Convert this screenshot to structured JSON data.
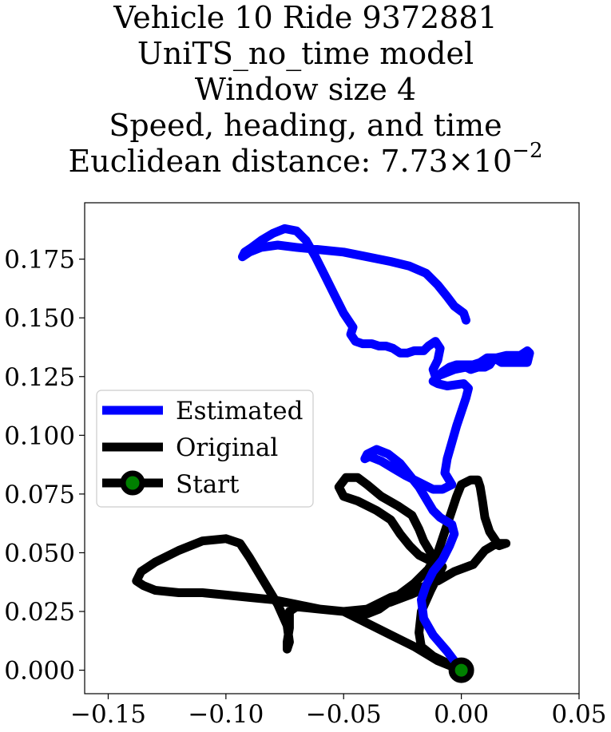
{
  "chart_data": {
    "type": "line",
    "title_lines": [
      "Vehicle 10 Ride 9372881",
      "UniTS_no_time model",
      "Window size 4",
      "Speed, heading, and time"
    ],
    "metric": {
      "prefix": "Euclidean distance: ",
      "mantissa": "7.73",
      "times": "×10",
      "exponent": "−2"
    },
    "xlim": [
      -0.16,
      0.05
    ],
    "ylim": [
      -0.01,
      0.199
    ],
    "xticks": [
      -0.15,
      -0.1,
      -0.05,
      0.0,
      0.05
    ],
    "xtick_labels": [
      "−0.15",
      "−0.10",
      "−0.05",
      "0.00",
      "0.05"
    ],
    "yticks": [
      0.0,
      0.025,
      0.05,
      0.075,
      0.1,
      0.125,
      0.15,
      0.175
    ],
    "ytick_labels": [
      "0.000",
      "0.025",
      "0.050",
      "0.075",
      "0.100",
      "0.125",
      "0.150",
      "0.175"
    ],
    "legend_position": "center-left",
    "colors": {
      "estimated": "#0000ff",
      "original": "#000000",
      "start_marker": "#008000"
    },
    "series": [
      {
        "name": "Estimated",
        "points": [
          [
            0.0,
            0.0
          ],
          [
            -0.006,
            0.008
          ],
          [
            -0.012,
            0.015
          ],
          [
            -0.016,
            0.022
          ],
          [
            -0.017,
            0.03
          ],
          [
            -0.015,
            0.036
          ],
          [
            -0.012,
            0.042
          ],
          [
            -0.008,
            0.047
          ],
          [
            -0.005,
            0.053
          ],
          [
            -0.003,
            0.058
          ],
          [
            -0.004,
            0.062
          ],
          [
            -0.009,
            0.065
          ],
          [
            -0.012,
            0.068
          ],
          [
            -0.015,
            0.073
          ],
          [
            -0.018,
            0.078
          ],
          [
            -0.022,
            0.083
          ],
          [
            -0.026,
            0.088
          ],
          [
            -0.031,
            0.092
          ],
          [
            -0.036,
            0.094
          ],
          [
            -0.04,
            0.092
          ],
          [
            -0.041,
            0.09
          ],
          [
            -0.039,
            0.091
          ],
          [
            -0.034,
            0.089
          ],
          [
            -0.029,
            0.086
          ],
          [
            -0.024,
            0.083
          ],
          [
            -0.018,
            0.08
          ],
          [
            -0.012,
            0.077
          ],
          [
            -0.008,
            0.077
          ],
          [
            -0.004,
            0.079
          ],
          [
            -0.007,
            0.084
          ],
          [
            -0.006,
            0.09
          ],
          [
            -0.004,
            0.097
          ],
          [
            -0.002,
            0.104
          ],
          [
            0.0,
            0.11
          ],
          [
            0.002,
            0.116
          ],
          [
            0.003,
            0.12
          ],
          [
            0.001,
            0.122
          ],
          [
            -0.006,
            0.121
          ],
          [
            -0.01,
            0.122
          ],
          [
            -0.012,
            0.123
          ],
          [
            -0.01,
            0.125
          ],
          [
            -0.008,
            0.127
          ],
          [
            -0.005,
            0.129
          ],
          [
            -0.002,
            0.13
          ],
          [
            0.002,
            0.13
          ],
          [
            0.005,
            0.13
          ],
          [
            0.008,
            0.131
          ],
          [
            0.011,
            0.133
          ],
          [
            0.015,
            0.133
          ],
          [
            0.019,
            0.134
          ],
          [
            0.022,
            0.134
          ],
          [
            0.025,
            0.134
          ],
          [
            0.028,
            0.136
          ],
          [
            0.029,
            0.135
          ],
          [
            0.028,
            0.131
          ],
          [
            0.025,
            0.131
          ],
          [
            0.02,
            0.131
          ],
          [
            0.017,
            0.131
          ],
          [
            0.014,
            0.133
          ],
          [
            0.012,
            0.13
          ],
          [
            0.01,
            0.129
          ],
          [
            0.007,
            0.129
          ],
          [
            0.004,
            0.128
          ],
          [
            0.002,
            0.129
          ],
          [
            -0.003,
            0.128
          ],
          [
            -0.008,
            0.126
          ],
          [
            -0.011,
            0.125
          ],
          [
            -0.012,
            0.128
          ],
          [
            -0.01,
            0.132
          ],
          [
            -0.009,
            0.137
          ],
          [
            -0.011,
            0.14
          ],
          [
            -0.014,
            0.138
          ],
          [
            -0.016,
            0.136
          ],
          [
            -0.02,
            0.136
          ],
          [
            -0.023,
            0.135
          ],
          [
            -0.026,
            0.135
          ],
          [
            -0.029,
            0.137
          ],
          [
            -0.032,
            0.138
          ],
          [
            -0.035,
            0.138
          ],
          [
            -0.038,
            0.139
          ],
          [
            -0.042,
            0.139
          ],
          [
            -0.045,
            0.14
          ],
          [
            -0.047,
            0.143
          ],
          [
            -0.046,
            0.146
          ],
          [
            -0.05,
            0.152
          ],
          [
            -0.054,
            0.16
          ],
          [
            -0.058,
            0.168
          ],
          [
            -0.062,
            0.176
          ],
          [
            -0.066,
            0.183
          ],
          [
            -0.07,
            0.187
          ],
          [
            -0.075,
            0.188
          ],
          [
            -0.08,
            0.186
          ],
          [
            -0.085,
            0.183
          ],
          [
            -0.089,
            0.18
          ],
          [
            -0.092,
            0.178
          ],
          [
            -0.093,
            0.176
          ],
          [
            -0.09,
            0.178
          ],
          [
            -0.085,
            0.18
          ],
          [
            -0.078,
            0.181
          ],
          [
            -0.07,
            0.18
          ],
          [
            -0.06,
            0.179
          ],
          [
            -0.05,
            0.178
          ],
          [
            -0.04,
            0.176
          ],
          [
            -0.03,
            0.174
          ],
          [
            -0.022,
            0.172
          ],
          [
            -0.015,
            0.169
          ],
          [
            -0.01,
            0.164
          ],
          [
            -0.006,
            0.159
          ],
          [
            -0.003,
            0.155
          ],
          [
            0.001,
            0.152
          ],
          [
            0.002,
            0.149
          ]
        ]
      },
      {
        "name": "Original",
        "points": [
          [
            0.0,
            0.0
          ],
          [
            -0.01,
            0.004
          ],
          [
            -0.02,
            0.01
          ],
          [
            -0.03,
            0.015
          ],
          [
            -0.04,
            0.02
          ],
          [
            -0.05,
            0.025
          ],
          [
            -0.06,
            0.026
          ],
          [
            -0.07,
            0.028
          ],
          [
            -0.08,
            0.03
          ],
          [
            -0.09,
            0.031
          ],
          [
            -0.1,
            0.032
          ],
          [
            -0.11,
            0.033
          ],
          [
            -0.12,
            0.033
          ],
          [
            -0.13,
            0.034
          ],
          [
            -0.135,
            0.036
          ],
          [
            -0.138,
            0.038
          ],
          [
            -0.136,
            0.042
          ],
          [
            -0.13,
            0.046
          ],
          [
            -0.12,
            0.051
          ],
          [
            -0.11,
            0.055
          ],
          [
            -0.1,
            0.056
          ],
          [
            -0.094,
            0.054
          ],
          [
            -0.09,
            0.048
          ],
          [
            -0.084,
            0.038
          ],
          [
            -0.078,
            0.028
          ],
          [
            -0.074,
            0.019
          ],
          [
            -0.073,
            0.012
          ],
          [
            -0.074,
            0.009
          ],
          [
            -0.074,
            0.012
          ],
          [
            -0.073,
            0.018
          ],
          [
            -0.073,
            0.025
          ],
          [
            -0.07,
            0.027
          ],
          [
            -0.06,
            0.026
          ],
          [
            -0.05,
            0.025
          ],
          [
            -0.04,
            0.026
          ],
          [
            -0.03,
            0.031
          ],
          [
            -0.02,
            0.034
          ],
          [
            -0.01,
            0.038
          ],
          [
            -0.003,
            0.042
          ],
          [
            0.005,
            0.045
          ],
          [
            0.01,
            0.051
          ],
          [
            0.015,
            0.054
          ],
          [
            0.019,
            0.054
          ],
          [
            0.016,
            0.053
          ],
          [
            0.012,
            0.059
          ],
          [
            0.01,
            0.065
          ],
          [
            0.009,
            0.072
          ],
          [
            0.008,
            0.078
          ],
          [
            0.007,
            0.081
          ],
          [
            0.004,
            0.081
          ],
          [
            0.0,
            0.079
          ],
          [
            -0.002,
            0.074
          ],
          [
            -0.004,
            0.068
          ],
          [
            -0.006,
            0.062
          ],
          [
            -0.008,
            0.056
          ],
          [
            -0.01,
            0.05
          ],
          [
            -0.014,
            0.043
          ],
          [
            -0.02,
            0.037
          ],
          [
            -0.028,
            0.031
          ],
          [
            -0.035,
            0.026
          ],
          [
            -0.04,
            0.024
          ],
          [
            -0.045,
            0.025
          ],
          [
            -0.05,
            0.025
          ],
          [
            -0.04,
            0.026
          ],
          [
            -0.03,
            0.029
          ],
          [
            -0.022,
            0.032
          ],
          [
            -0.015,
            0.035
          ],
          [
            -0.01,
            0.04
          ],
          [
            -0.008,
            0.044
          ],
          [
            -0.012,
            0.046
          ],
          [
            -0.018,
            0.049
          ],
          [
            -0.022,
            0.053
          ],
          [
            -0.026,
            0.058
          ],
          [
            -0.03,
            0.064
          ],
          [
            -0.036,
            0.068
          ],
          [
            -0.044,
            0.072
          ],
          [
            -0.05,
            0.074
          ],
          [
            -0.052,
            0.078
          ],
          [
            -0.049,
            0.082
          ],
          [
            -0.044,
            0.082
          ],
          [
            -0.04,
            0.079
          ],
          [
            -0.034,
            0.074
          ],
          [
            -0.027,
            0.07
          ],
          [
            -0.021,
            0.066
          ],
          [
            -0.018,
            0.06
          ],
          [
            -0.016,
            0.055
          ],
          [
            -0.013,
            0.05
          ],
          [
            -0.01,
            0.046
          ],
          [
            -0.01,
            0.04
          ],
          [
            -0.013,
            0.034
          ],
          [
            -0.017,
            0.025
          ],
          [
            -0.018,
            0.016
          ],
          [
            -0.017,
            0.01
          ],
          [
            -0.012,
            0.006
          ],
          [
            -0.006,
            0.003
          ],
          [
            0.0,
            0.0
          ]
        ]
      }
    ],
    "start_point": {
      "name": "Start",
      "x": 0.0,
      "y": 0.0
    }
  }
}
